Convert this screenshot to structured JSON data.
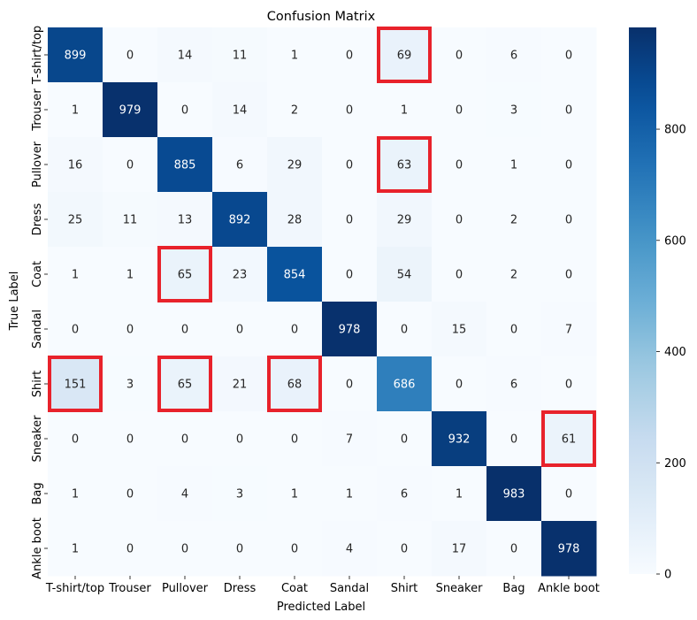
{
  "chart_data": {
    "type": "heatmap",
    "title": "Confusion Matrix",
    "xlabel": "Predicted Label",
    "ylabel": "True Label",
    "x_categories": [
      "T-shirt/top",
      "Trouser",
      "Pullover",
      "Dress",
      "Coat",
      "Sandal",
      "Shirt",
      "Sneaker",
      "Bag",
      "Ankle boot"
    ],
    "y_categories": [
      "T-shirt/top",
      "Trouser",
      "Pullover",
      "Dress",
      "Coat",
      "Sandal",
      "Shirt",
      "Sneaker",
      "Bag",
      "Ankle boot"
    ],
    "values": [
      [
        899,
        0,
        14,
        11,
        1,
        0,
        69,
        0,
        6,
        0
      ],
      [
        1,
        979,
        0,
        14,
        2,
        0,
        1,
        0,
        3,
        0
      ],
      [
        16,
        0,
        885,
        6,
        29,
        0,
        63,
        0,
        1,
        0
      ],
      [
        25,
        11,
        13,
        892,
        28,
        0,
        29,
        0,
        2,
        0
      ],
      [
        1,
        1,
        65,
        23,
        854,
        0,
        54,
        0,
        2,
        0
      ],
      [
        0,
        0,
        0,
        0,
        0,
        978,
        0,
        15,
        0,
        7
      ],
      [
        151,
        3,
        65,
        21,
        68,
        0,
        686,
        0,
        6,
        0
      ],
      [
        0,
        0,
        0,
        0,
        0,
        7,
        0,
        932,
        0,
        61
      ],
      [
        1,
        0,
        4,
        3,
        1,
        1,
        6,
        1,
        983,
        0
      ],
      [
        1,
        0,
        0,
        0,
        0,
        4,
        0,
        17,
        0,
        978
      ]
    ],
    "colormap": "Blues",
    "vmin": 0,
    "vmax": 983,
    "colorbar_ticks": [
      0,
      200,
      400,
      600,
      800
    ],
    "highlighted_cells": [
      {
        "row": "T-shirt/top",
        "col": "Shirt"
      },
      {
        "row": "Pullover",
        "col": "Shirt"
      },
      {
        "row": "Coat",
        "col": "Pullover"
      },
      {
        "row": "Shirt",
        "col": "T-shirt/top"
      },
      {
        "row": "Shirt",
        "col": "Pullover"
      },
      {
        "row": "Shirt",
        "col": "Coat"
      },
      {
        "row": "Sneaker",
        "col": "Ankle boot"
      }
    ],
    "highlight_color": "#e8222b"
  }
}
